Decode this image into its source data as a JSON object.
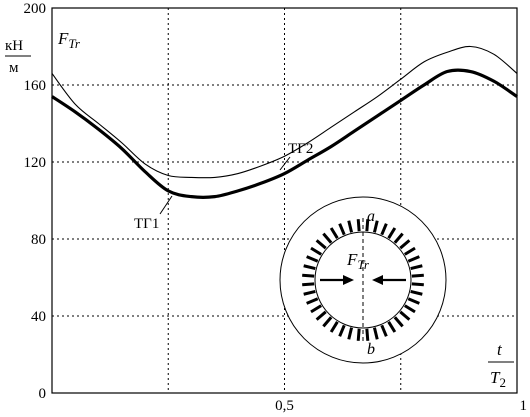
{
  "chart_data": {
    "type": "line",
    "ylabel_symbol": "F",
    "ylabel_subscript": "Tr",
    "yunit_top": "кН",
    "yunit_bottom": "м",
    "xlabel_num": "t",
    "xlabel_den_symbol": "T",
    "xlabel_den_subscript": "2",
    "xlim": [
      0,
      1
    ],
    "ylim": [
      0,
      200
    ],
    "xticks": [
      0,
      0.25,
      0.5,
      0.75,
      1
    ],
    "xtick_labels": [
      "",
      "",
      "0,5",
      "",
      "1"
    ],
    "yticks": [
      0,
      40,
      80,
      120,
      160,
      200
    ],
    "ytick_labels": [
      "0",
      "40",
      "80",
      "120",
      "160",
      "200"
    ],
    "grid": true,
    "series": [
      {
        "name": "ТГ1",
        "color": "#000000",
        "style": "thick",
        "x": [
          0,
          0.05,
          0.1,
          0.15,
          0.2,
          0.25,
          0.3,
          0.35,
          0.4,
          0.45,
          0.5,
          0.55,
          0.6,
          0.65,
          0.7,
          0.75,
          0.8,
          0.85,
          0.9,
          0.95,
          1.0
        ],
        "y": [
          154,
          146,
          137,
          127,
          115,
          105,
          102,
          102,
          105,
          109,
          114,
          121,
          128,
          136,
          144,
          152,
          160,
          167,
          167,
          162,
          154
        ]
      },
      {
        "name": "ТГ2",
        "color": "#000000",
        "style": "thin",
        "x": [
          0,
          0.05,
          0.1,
          0.15,
          0.2,
          0.25,
          0.3,
          0.35,
          0.4,
          0.45,
          0.5,
          0.55,
          0.6,
          0.65,
          0.7,
          0.75,
          0.8,
          0.85,
          0.9,
          0.95,
          1.0
        ],
        "y": [
          166,
          150,
          140,
          130,
          119,
          113,
          112,
          112,
          114,
          118,
          123,
          130,
          138,
          146,
          154,
          163,
          172,
          177,
          180,
          176,
          166
        ]
      }
    ],
    "annotations": {
      "series1_label": "ТГ1",
      "series2_label": "ТГ2",
      "inset_top_label": "a",
      "inset_bottom_label": "b",
      "inset_force_symbol": "F",
      "inset_force_subscript": "Tr"
    }
  }
}
